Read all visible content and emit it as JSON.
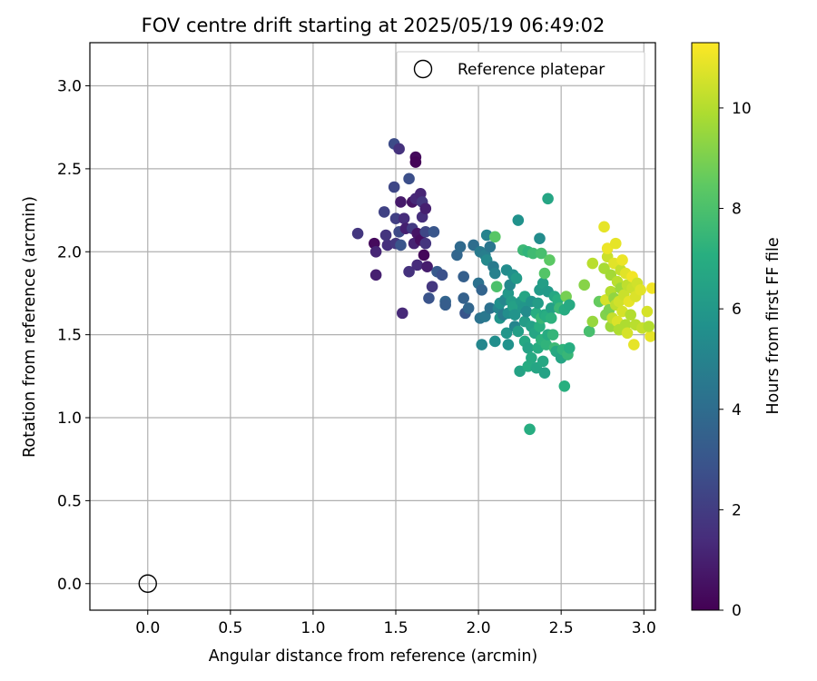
{
  "chart_data": {
    "type": "scatter",
    "title": "FOV centre drift starting at 2025/05/19 06:49:02",
    "xlabel": "Angular distance from reference (arcmin)",
    "ylabel": "Rotation from reference (arcmin)",
    "xlim": [
      -0.35,
      3.07
    ],
    "ylim": [
      -0.16,
      3.26
    ],
    "xticks": [
      "0.0",
      "0.5",
      "1.0",
      "1.5",
      "2.0",
      "2.5",
      "3.0"
    ],
    "yticks": [
      "0.0",
      "0.5",
      "1.0",
      "1.5",
      "2.0",
      "2.5",
      "3.0"
    ],
    "grid": true,
    "legend": {
      "position": "top-right",
      "entries": [
        "Reference platepar"
      ]
    },
    "reference_point": {
      "x": 0.0,
      "y": 0.0,
      "marker": "open-circle",
      "color": "#000000"
    },
    "colorbar": {
      "label": "Hours from first FF file",
      "range": [
        0,
        11.3
      ],
      "ticks": [
        "0",
        "2",
        "4",
        "6",
        "8",
        "10"
      ],
      "colormap": "viridis"
    },
    "points": [
      [
        1.27,
        2.11,
        1.8
      ],
      [
        1.37,
        2.05,
        0.3
      ],
      [
        1.38,
        1.86,
        1.0
      ],
      [
        1.38,
        2.0,
        1.2
      ],
      [
        1.43,
        2.24,
        2.2
      ],
      [
        1.45,
        2.04,
        1.5
      ],
      [
        1.44,
        2.1,
        1.7
      ],
      [
        1.49,
        2.65,
        2.6
      ],
      [
        1.49,
        2.39,
        2.4
      ],
      [
        1.5,
        2.2,
        2.1
      ],
      [
        1.5,
        2.05,
        1.8
      ],
      [
        1.52,
        2.62,
        1.6
      ],
      [
        1.53,
        2.3,
        0.8
      ],
      [
        1.52,
        2.12,
        2.5
      ],
      [
        1.53,
        2.04,
        2.9
      ],
      [
        1.55,
        2.2,
        1.4
      ],
      [
        1.54,
        1.63,
        1.3
      ],
      [
        1.56,
        2.14,
        1.0
      ],
      [
        1.58,
        2.44,
        2.7
      ],
      [
        1.58,
        1.88,
        1.6
      ],
      [
        1.6,
        2.3,
        0.6
      ],
      [
        1.6,
        2.14,
        1.9
      ],
      [
        1.61,
        2.05,
        1.1
      ],
      [
        1.62,
        2.57,
        0.3
      ],
      [
        1.62,
        2.54,
        0.1
      ],
      [
        1.62,
        2.32,
        1.3
      ],
      [
        1.63,
        2.11,
        0.6
      ],
      [
        1.63,
        1.92,
        1.4
      ],
      [
        1.65,
        2.35,
        1.2
      ],
      [
        1.65,
        2.07,
        0.4
      ],
      [
        1.66,
        2.3,
        1.8
      ],
      [
        1.66,
        2.21,
        1.5
      ],
      [
        1.67,
        1.98,
        0.2
      ],
      [
        1.68,
        2.12,
        2.4
      ],
      [
        1.68,
        2.26,
        1.0
      ],
      [
        1.68,
        2.05,
        1.7
      ],
      [
        1.69,
        1.91,
        0.9
      ],
      [
        1.7,
        1.72,
        2.9
      ],
      [
        1.72,
        1.79,
        1.8
      ],
      [
        1.73,
        2.12,
        3.0
      ],
      [
        1.75,
        1.88,
        3.2
      ],
      [
        1.78,
        1.86,
        2.8
      ],
      [
        1.8,
        1.7,
        3.6
      ],
      [
        1.8,
        1.68,
        3.3
      ],
      [
        1.87,
        1.98,
        3.7
      ],
      [
        1.89,
        2.03,
        3.9
      ],
      [
        1.91,
        1.85,
        3.4
      ],
      [
        1.91,
        1.72,
        3.5
      ],
      [
        1.92,
        1.63,
        3.0
      ],
      [
        1.94,
        1.66,
        3.7
      ],
      [
        1.97,
        2.04,
        4.0
      ],
      [
        2.0,
        1.81,
        4.2
      ],
      [
        2.01,
        2.0,
        4.6
      ],
      [
        2.01,
        1.6,
        4.3
      ],
      [
        2.02,
        1.44,
        5.2
      ],
      [
        2.02,
        1.77,
        3.6
      ],
      [
        2.04,
        1.61,
        4.5
      ],
      [
        2.04,
        1.98,
        4.8
      ],
      [
        2.05,
        2.1,
        5.0
      ],
      [
        2.05,
        1.95,
        5.3
      ],
      [
        2.07,
        1.66,
        4.2
      ],
      [
        2.07,
        2.03,
        4.4
      ],
      [
        2.09,
        1.91,
        4.6
      ],
      [
        2.1,
        2.09,
        8.3
      ],
      [
        2.1,
        1.87,
        4.9
      ],
      [
        2.1,
        1.46,
        5.5
      ],
      [
        2.11,
        1.79,
        8.0
      ],
      [
        2.12,
        1.66,
        5.1
      ],
      [
        2.13,
        1.69,
        5.6
      ],
      [
        2.13,
        1.6,
        5.8
      ],
      [
        2.15,
        1.62,
        4.7
      ],
      [
        2.16,
        1.71,
        5.2
      ],
      [
        2.17,
        1.51,
        5.9
      ],
      [
        2.17,
        1.89,
        5.4
      ],
      [
        2.18,
        1.75,
        6.0
      ],
      [
        2.18,
        1.63,
        5.5
      ],
      [
        2.18,
        1.44,
        5.7
      ],
      [
        2.19,
        1.8,
        5.3
      ],
      [
        2.2,
        1.7,
        6.2
      ],
      [
        2.21,
        1.86,
        5.6
      ],
      [
        2.21,
        1.67,
        6.4
      ],
      [
        2.22,
        1.55,
        5.1
      ],
      [
        2.22,
        1.62,
        5.8
      ],
      [
        2.23,
        1.84,
        6.1
      ],
      [
        2.24,
        2.19,
        5.7
      ],
      [
        2.24,
        1.52,
        6.3
      ],
      [
        2.25,
        1.28,
        6.5
      ],
      [
        2.26,
        1.7,
        6.0
      ],
      [
        2.27,
        1.66,
        5.9
      ],
      [
        2.27,
        2.01,
        7.6
      ],
      [
        2.28,
        1.73,
        6.6
      ],
      [
        2.28,
        1.58,
        6.2
      ],
      [
        2.28,
        1.46,
        6.7
      ],
      [
        2.29,
        1.64,
        5.4
      ],
      [
        2.3,
        2.0,
        7.3
      ],
      [
        2.3,
        1.42,
        6.5
      ],
      [
        2.3,
        1.31,
        6.9
      ],
      [
        2.31,
        0.93,
        7.0
      ],
      [
        2.32,
        1.55,
        6.4
      ],
      [
        2.32,
        1.7,
        5.8
      ],
      [
        2.32,
        1.36,
        6.8
      ],
      [
        2.33,
        1.99,
        7.7
      ],
      [
        2.34,
        1.51,
        6.6
      ],
      [
        2.35,
        1.3,
        6.6
      ],
      [
        2.35,
        1.63,
        7.0
      ],
      [
        2.36,
        1.42,
        6.9
      ],
      [
        2.36,
        1.69,
        6.2
      ],
      [
        2.37,
        2.08,
        5.4
      ],
      [
        2.37,
        1.77,
        6.1
      ],
      [
        2.37,
        1.55,
        7.1
      ],
      [
        2.38,
        1.47,
        7.2
      ],
      [
        2.38,
        1.99,
        7.9
      ],
      [
        2.38,
        1.6,
        7.5
      ],
      [
        2.39,
        1.34,
        6.7
      ],
      [
        2.39,
        1.81,
        6.3
      ],
      [
        2.4,
        1.62,
        6.8
      ],
      [
        2.4,
        1.87,
        8.2
      ],
      [
        2.4,
        1.27,
        6.5
      ],
      [
        2.41,
        1.44,
        7.3
      ],
      [
        2.41,
        1.61,
        7.0
      ],
      [
        2.42,
        2.32,
        6.6
      ],
      [
        2.42,
        1.76,
        6.1
      ],
      [
        2.42,
        1.5,
        6.9
      ],
      [
        2.43,
        1.95,
        8.4
      ],
      [
        2.44,
        1.66,
        6.4
      ],
      [
        2.44,
        1.6,
        7.2
      ],
      [
        2.45,
        1.5,
        7.4
      ],
      [
        2.46,
        1.73,
        6.7
      ],
      [
        2.46,
        1.42,
        7.6
      ],
      [
        2.47,
        1.4,
        6.8
      ],
      [
        2.48,
        1.71,
        7.1
      ],
      [
        2.49,
        1.66,
        7.6
      ],
      [
        2.5,
        1.36,
        6.6
      ],
      [
        2.51,
        1.41,
        7.3
      ],
      [
        2.52,
        1.19,
        7.1
      ],
      [
        2.52,
        1.65,
        6.9
      ],
      [
        2.53,
        1.73,
        8.9
      ],
      [
        2.54,
        1.38,
        7.5
      ],
      [
        2.55,
        1.42,
        7.0
      ],
      [
        2.55,
        1.68,
        6.8
      ],
      [
        2.64,
        1.8,
        9.2
      ],
      [
        2.67,
        1.52,
        7.9
      ],
      [
        2.69,
        1.93,
        10.1
      ],
      [
        2.69,
        1.58,
        9.5
      ],
      [
        2.73,
        1.7,
        8.6
      ],
      [
        2.76,
        2.15,
        10.9
      ],
      [
        2.76,
        1.9,
        9.8
      ],
      [
        2.77,
        1.62,
        9.1
      ],
      [
        2.77,
        1.71,
        10.6
      ],
      [
        2.78,
        1.97,
        10.4
      ],
      [
        2.78,
        2.02,
        11.0
      ],
      [
        2.79,
        1.65,
        9.0
      ],
      [
        2.8,
        1.76,
        10.0
      ],
      [
        2.8,
        1.86,
        9.7
      ],
      [
        2.8,
        1.55,
        9.6
      ],
      [
        2.81,
        1.6,
        10.3
      ],
      [
        2.82,
        1.93,
        10.8
      ],
      [
        2.82,
        1.72,
        9.4
      ],
      [
        2.83,
        1.68,
        10.2
      ],
      [
        2.83,
        2.05,
        10.9
      ],
      [
        2.84,
        1.82,
        10.1
      ],
      [
        2.84,
        1.58,
        10.7
      ],
      [
        2.85,
        1.53,
        9.9
      ],
      [
        2.85,
        1.7,
        10.5
      ],
      [
        2.86,
        1.78,
        9.6
      ],
      [
        2.86,
        1.89,
        10.3
      ],
      [
        2.87,
        1.64,
        10.6
      ],
      [
        2.87,
        1.95,
        11.0
      ],
      [
        2.88,
        1.74,
        10.4
      ],
      [
        2.89,
        1.56,
        9.9
      ],
      [
        2.89,
        1.87,
        10.8
      ],
      [
        2.9,
        1.8,
        10.2
      ],
      [
        2.9,
        1.51,
        10.6
      ],
      [
        2.91,
        1.7,
        10.9
      ],
      [
        2.92,
        1.62,
        10.0
      ],
      [
        2.93,
        1.85,
        11.1
      ],
      [
        2.93,
        1.78,
        10.4
      ],
      [
        2.94,
        1.44,
        10.9
      ],
      [
        2.95,
        1.73,
        10.7
      ],
      [
        2.95,
        1.56,
        10.1
      ],
      [
        2.96,
        1.81,
        10.5
      ],
      [
        2.98,
        1.77,
        10.8
      ],
      [
        2.99,
        1.54,
        10.3
      ],
      [
        3.02,
        1.64,
        10.6
      ],
      [
        3.04,
        1.49,
        10.9
      ],
      [
        3.05,
        1.78,
        11.1
      ],
      [
        3.03,
        1.55,
        10.0
      ]
    ]
  }
}
